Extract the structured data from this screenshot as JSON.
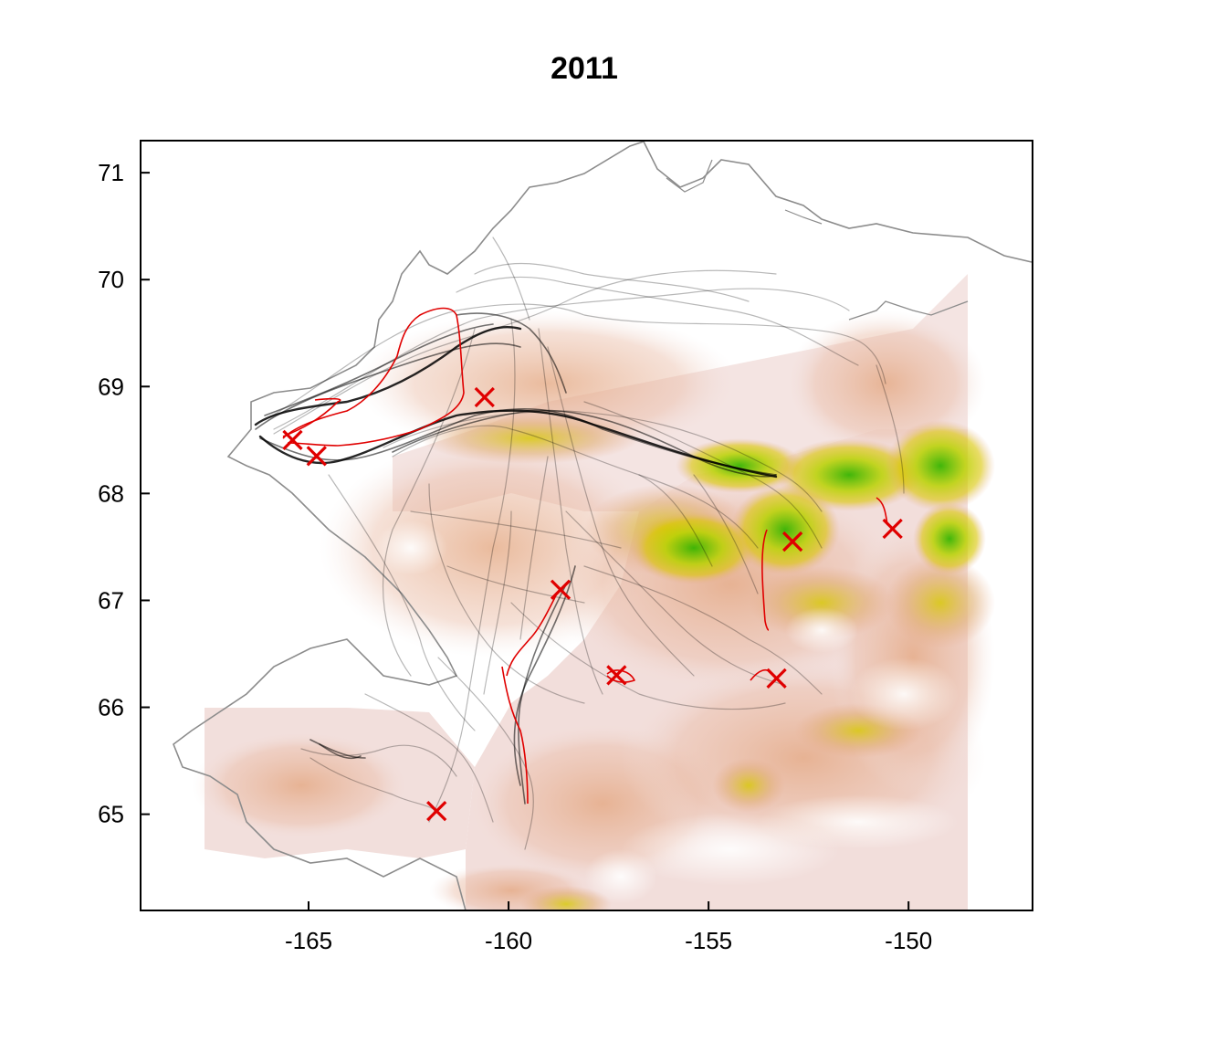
{
  "title": "2011",
  "chart_data": {
    "type": "map",
    "title": "2011",
    "xlabel": "",
    "ylabel": "",
    "xlim": [
      -169.2,
      -146.9
    ],
    "ylim": [
      64.1,
      71.3
    ],
    "x_ticks": [
      -165,
      -160,
      -155,
      -150
    ],
    "y_ticks": [
      65,
      66,
      67,
      68,
      69,
      70,
      71
    ],
    "x_tick_labels": [
      "-165",
      "-160",
      "-155",
      "-150"
    ],
    "y_tick_labels": [
      "65",
      "66",
      "67",
      "68",
      "69",
      "70",
      "71"
    ],
    "grid": false,
    "colors": {
      "tracks": "#000000",
      "highlight_tracks": "#e00000",
      "markers": "#e00000",
      "coastline": "#8c8c8c",
      "land_low": "#f2e4e2",
      "terrain_mid": "#e6a98a",
      "terrain_high": "#d9c500",
      "terrain_peak": "#37b400"
    },
    "markers": [
      {
        "lon": -165.4,
        "lat": 68.5
      },
      {
        "lon": -164.8,
        "lat": 68.35
      },
      {
        "lon": -160.6,
        "lat": 68.9
      },
      {
        "lon": -158.7,
        "lat": 67.1
      },
      {
        "lon": -157.3,
        "lat": 66.3
      },
      {
        "lon": -153.3,
        "lat": 66.27
      },
      {
        "lon": -152.9,
        "lat": 67.55
      },
      {
        "lon": -150.4,
        "lat": 67.67
      },
      {
        "lon": -161.8,
        "lat": 65.03
      }
    ]
  }
}
